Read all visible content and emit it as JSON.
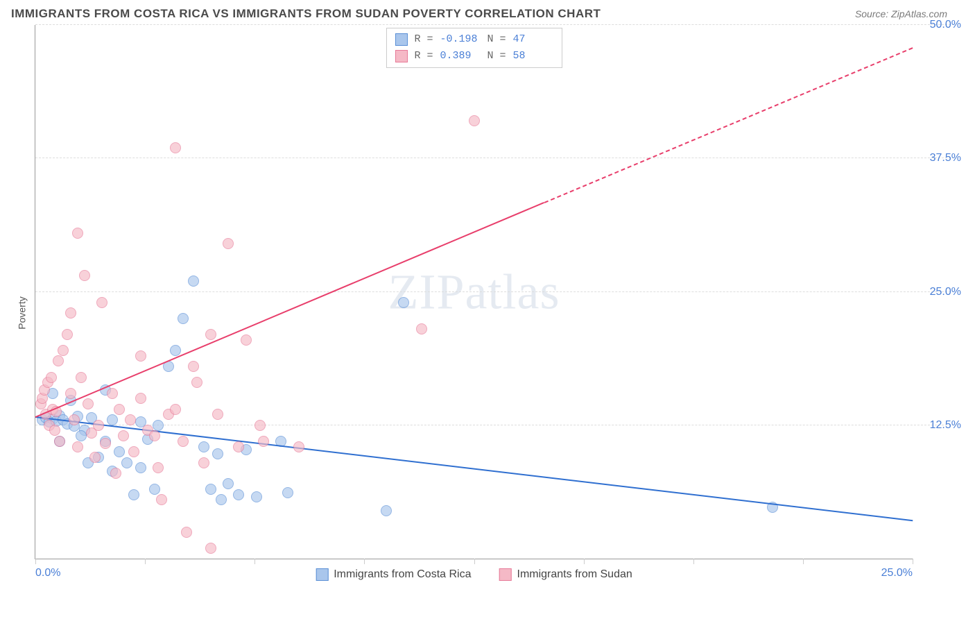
{
  "header": {
    "title": "IMMIGRANTS FROM COSTA RICA VS IMMIGRANTS FROM SUDAN POVERTY CORRELATION CHART",
    "source_prefix": "Source: ",
    "source": "ZipAtlas.com"
  },
  "axes": {
    "y_label": "Poverty",
    "xlim": [
      0,
      25
    ],
    "ylim": [
      0,
      50
    ],
    "x_ticks": [
      0,
      3.125,
      6.25,
      9.375,
      12.5,
      15.625,
      18.75,
      21.875,
      25
    ],
    "x_tick_labels": {
      "0": "0.0%",
      "25": "25.0%"
    },
    "y_ticks": [
      12.5,
      25.0,
      37.5,
      50.0
    ],
    "y_tick_labels": [
      "12.5%",
      "25.0%",
      "37.5%",
      "50.0%"
    ],
    "grid_color": "#dddddd",
    "tick_color": "#cccccc",
    "axis_color": "#999999",
    "label_color": "#4a7fd6",
    "label_fontsize": 16
  },
  "watermark": {
    "text_bold": "ZIP",
    "text_light": "atlas"
  },
  "stats": [
    {
      "r_label": "R = ",
      "r": "-0.198",
      "n_label": "N = ",
      "n": "47",
      "color_fill": "#a9c6ec",
      "color_border": "#5a8fd6"
    },
    {
      "r_label": "R = ",
      "r": " 0.389",
      "n_label": "N = ",
      "n": "58",
      "color_fill": "#f5b9c6",
      "color_border": "#e77a98"
    }
  ],
  "series": [
    {
      "name": "Immigrants from Costa Rica",
      "point_fill": "#a9c6ec",
      "point_border": "#5a8fd6",
      "point_radius": 8,
      "trend_color": "#2f6fd0",
      "trend_start": [
        0,
        13.2
      ],
      "trend_end": [
        25,
        3.5
      ],
      "points": [
        [
          0.2,
          13.0
        ],
        [
          0.3,
          13.2
        ],
        [
          0.5,
          13.1
        ],
        [
          0.4,
          12.8
        ],
        [
          0.7,
          13.4
        ],
        [
          0.6,
          12.9
        ],
        [
          0.8,
          13.0
        ],
        [
          0.9,
          12.6
        ],
        [
          1.0,
          14.8
        ],
        [
          0.5,
          15.5
        ],
        [
          1.2,
          13.3
        ],
        [
          1.1,
          12.4
        ],
        [
          1.4,
          12.0
        ],
        [
          0.7,
          11.0
        ],
        [
          1.6,
          13.2
        ],
        [
          1.3,
          11.5
        ],
        [
          1.8,
          9.5
        ],
        [
          2.0,
          15.8
        ],
        [
          2.2,
          13.0
        ],
        [
          1.5,
          9.0
        ],
        [
          2.0,
          11.0
        ],
        [
          2.4,
          10.0
        ],
        [
          2.6,
          9.0
        ],
        [
          2.2,
          8.2
        ],
        [
          3.0,
          12.8
        ],
        [
          3.2,
          11.2
        ],
        [
          3.5,
          12.5
        ],
        [
          3.0,
          8.5
        ],
        [
          3.4,
          6.5
        ],
        [
          2.8,
          6.0
        ],
        [
          3.8,
          18.0
        ],
        [
          4.0,
          19.5
        ],
        [
          4.2,
          22.5
        ],
        [
          4.5,
          26.0
        ],
        [
          4.8,
          10.5
        ],
        [
          5.0,
          6.5
        ],
        [
          5.2,
          9.8
        ],
        [
          5.5,
          7.0
        ],
        [
          5.8,
          6.0
        ],
        [
          5.3,
          5.5
        ],
        [
          6.0,
          10.2
        ],
        [
          6.3,
          5.8
        ],
        [
          7.0,
          11.0
        ],
        [
          7.2,
          6.2
        ],
        [
          10.0,
          4.5
        ],
        [
          10.5,
          24.0
        ],
        [
          21.0,
          4.8
        ]
      ]
    },
    {
      "name": "Immigrants from Sudan",
      "point_fill": "#f5b9c6",
      "point_border": "#e77a98",
      "point_radius": 8,
      "trend_color": "#e83e6b",
      "trend_start": [
        0,
        13.2
      ],
      "trend_solid_end": [
        14.5,
        33.3
      ],
      "trend_end": [
        25,
        47.8
      ],
      "points": [
        [
          0.15,
          14.5
        ],
        [
          0.2,
          15.0
        ],
        [
          0.25,
          15.8
        ],
        [
          0.3,
          13.5
        ],
        [
          0.35,
          16.5
        ],
        [
          0.4,
          12.5
        ],
        [
          0.45,
          17.0
        ],
        [
          0.5,
          14.0
        ],
        [
          0.55,
          12.0
        ],
        [
          0.6,
          13.8
        ],
        [
          0.65,
          18.5
        ],
        [
          0.7,
          11.0
        ],
        [
          0.8,
          19.5
        ],
        [
          0.9,
          21.0
        ],
        [
          1.0,
          15.5
        ],
        [
          1.1,
          13.0
        ],
        [
          1.0,
          23.0
        ],
        [
          1.2,
          10.5
        ],
        [
          1.3,
          17.0
        ],
        [
          1.4,
          26.5
        ],
        [
          1.5,
          14.5
        ],
        [
          1.2,
          30.5
        ],
        [
          1.6,
          11.8
        ],
        [
          1.8,
          12.5
        ],
        [
          1.7,
          9.5
        ],
        [
          2.0,
          10.8
        ],
        [
          2.2,
          15.5
        ],
        [
          1.9,
          24.0
        ],
        [
          2.4,
          14.0
        ],
        [
          2.5,
          11.5
        ],
        [
          2.7,
          13.0
        ],
        [
          2.3,
          8.0
        ],
        [
          2.8,
          10.0
        ],
        [
          3.0,
          15.0
        ],
        [
          3.2,
          12.0
        ],
        [
          3.0,
          19.0
        ],
        [
          3.5,
          8.5
        ],
        [
          3.4,
          11.5
        ],
        [
          3.8,
          13.5
        ],
        [
          3.6,
          5.5
        ],
        [
          4.0,
          14.0
        ],
        [
          4.0,
          38.5
        ],
        [
          4.2,
          11.0
        ],
        [
          4.5,
          18.0
        ],
        [
          4.8,
          9.0
        ],
        [
          4.6,
          16.5
        ],
        [
          5.0,
          21.0
        ],
        [
          5.2,
          13.5
        ],
        [
          5.5,
          29.5
        ],
        [
          5.0,
          1.0
        ],
        [
          5.8,
          10.5
        ],
        [
          6.0,
          20.5
        ],
        [
          6.4,
          12.5
        ],
        [
          6.5,
          11.0
        ],
        [
          7.5,
          10.5
        ],
        [
          11.0,
          21.5
        ],
        [
          12.5,
          41.0
        ],
        [
          4.3,
          2.5
        ]
      ]
    }
  ],
  "legend": [
    {
      "label": "Immigrants from Costa Rica",
      "fill": "#a9c6ec",
      "border": "#5a8fd6"
    },
    {
      "label": "Immigrants from Sudan",
      "fill": "#f5b9c6",
      "border": "#e77a98"
    }
  ]
}
